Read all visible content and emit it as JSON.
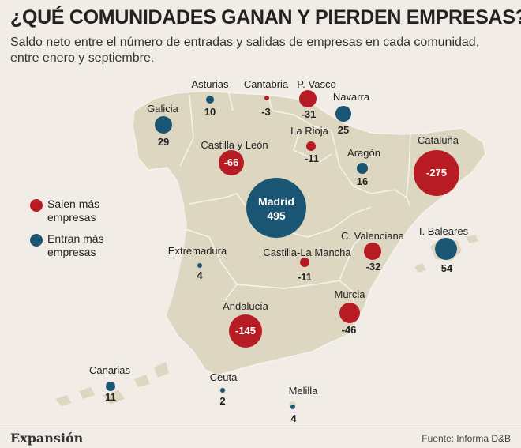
{
  "title": "¿QUÉ COMUNIDADES GANAN Y PIERDEN EMPRESAS?",
  "subtitle": "Saldo neto entre el número de entradas y salidas de empresas en cada comunidad, entre enero y septiembre.",
  "colors": {
    "loss": "#b71c24",
    "gain": "#1a5673",
    "land": "#ddd6c0",
    "sea": "#f1ede6"
  },
  "legend": {
    "loss": "Salen más empresas",
    "gain": "Entran más empresas"
  },
  "regions": [
    {
      "name": "Galicia",
      "value": "29",
      "type": "gain"
    },
    {
      "name": "Asturias",
      "value": "10",
      "type": "gain"
    },
    {
      "name": "Cantabria",
      "value": "-3",
      "type": "loss"
    },
    {
      "name": "P. Vasco",
      "value": "-31",
      "type": "loss"
    },
    {
      "name": "Navarra",
      "value": "25",
      "type": "gain"
    },
    {
      "name": "La Rioja",
      "value": "-11",
      "type": "loss"
    },
    {
      "name": "Aragón",
      "value": "16",
      "type": "gain"
    },
    {
      "name": "Cataluña",
      "value": "-275",
      "type": "loss"
    },
    {
      "name": "Castilla y León",
      "value": "-66",
      "type": "loss"
    },
    {
      "name": "Madrid",
      "value": "495",
      "type": "gain"
    },
    {
      "name": "Extremadura",
      "value": "4",
      "type": "gain"
    },
    {
      "name": "Castilla-La Mancha",
      "value": "-11",
      "type": "loss"
    },
    {
      "name": "C. Valenciana",
      "value": "-32",
      "type": "loss"
    },
    {
      "name": "I. Baleares",
      "value": "54",
      "type": "gain"
    },
    {
      "name": "Murcia",
      "value": "-46",
      "type": "loss"
    },
    {
      "name": "Andalucía",
      "value": "-145",
      "type": "loss"
    },
    {
      "name": "Canarias",
      "value": "11",
      "type": "gain"
    },
    {
      "name": "Ceuta",
      "value": "2",
      "type": "gain"
    },
    {
      "name": "Melilla",
      "value": "4",
      "type": "gain"
    }
  ],
  "footer": {
    "logo": "Expansión",
    "source": "Fuente: Informa D&B"
  }
}
